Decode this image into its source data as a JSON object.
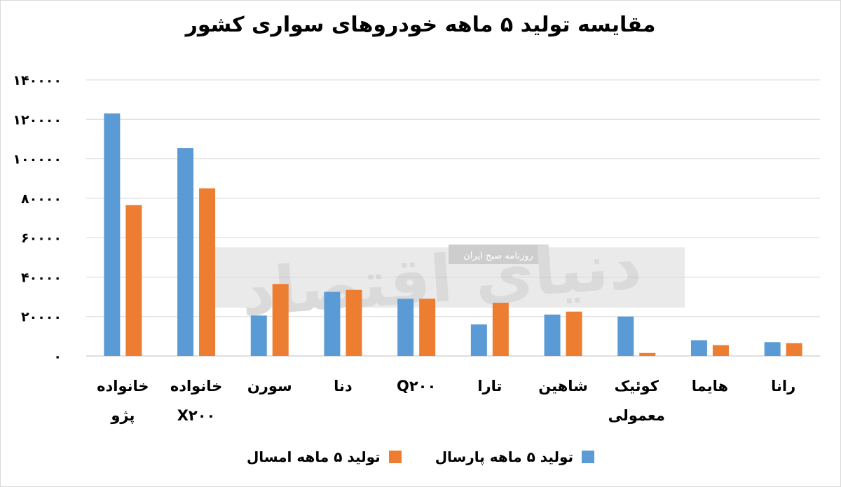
{
  "chart_data": {
    "type": "bar",
    "title": "مقایسه تولید ۵ ماهه خودروهای سواری کشور",
    "categories": [
      "خانواده پژو",
      "خانواده X۲۰۰",
      "سورن",
      "دنا",
      "Q۲۰۰",
      "تارا",
      "شاهین",
      "کوئیک معمولی",
      "هایما",
      "رانا"
    ],
    "category_lines": [
      [
        "خانواده",
        "پژو"
      ],
      [
        "خانواده",
        "X۲۰۰"
      ],
      [
        "سورن"
      ],
      [
        "دنا"
      ],
      [
        "Q۲۰۰"
      ],
      [
        "تارا"
      ],
      [
        "شاهین"
      ],
      [
        "کوئیک",
        "معمولی"
      ],
      [
        "هایما"
      ],
      [
        "رانا"
      ]
    ],
    "series": [
      {
        "name": "تولید ۵ ماهه پارسال",
        "color": "#5b9bd5",
        "values": [
          123000,
          105500,
          20500,
          32500,
          29000,
          16000,
          21000,
          20000,
          8000,
          7000
        ]
      },
      {
        "name": "تولید ۵ ماهه امسال",
        "color": "#ed7d31",
        "values": [
          76500,
          85000,
          36500,
          33500,
          29000,
          27000,
          22500,
          1500,
          5500,
          6500
        ]
      }
    ],
    "ylim": [
      0,
      140000
    ],
    "yticks": [
      0,
      20000,
      40000,
      60000,
      80000,
      100000,
      120000,
      140000
    ],
    "ytick_labels": [
      "۰",
      "۲۰۰۰۰",
      "۴۰۰۰۰",
      "۶۰۰۰۰",
      "۸۰۰۰۰",
      "۱۰۰۰۰۰",
      "۱۲۰۰۰۰",
      "۱۴۰۰۰۰"
    ],
    "grid": true,
    "legend": "bottom"
  },
  "watermark": {
    "logo_text": "دنیای اقتصاد",
    "sub_text": "روزنامه صبح ایران"
  }
}
